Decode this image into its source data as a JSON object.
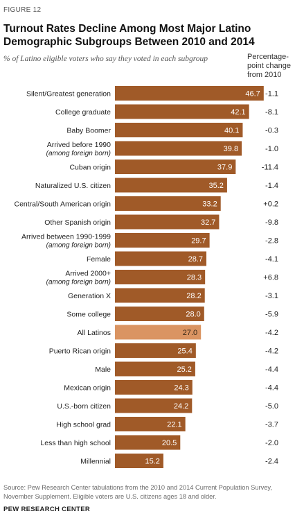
{
  "figure_label": "FIGURE 12",
  "title": "Turnout Rates Decline Among Most Major Latino Demographic Subgroups Between 2010 and 2014",
  "subtitle": "% of Latino eligible voters who say they voted in each subgroup",
  "change_header": "Percentage-point change from 2010",
  "source": "Source: Pew Research Center tabulations from the 2010 and 2014 Current Population Survey, November Supplement. Eligible voters are U.S. citizens ages 18 and older.",
  "organization": "PEW RESEARCH CENTER",
  "colors": {
    "bar": "#a05a28",
    "highlight": "#da9462",
    "value_text": "#ffffff",
    "highlight_text": "#3a2a1a"
  },
  "chart_data": {
    "type": "bar",
    "orientation": "horizontal",
    "xlim": [
      0,
      50
    ],
    "grid": false,
    "highlight": "All Latinos",
    "categories": [
      {
        "label": "Silent/Greatest generation"
      },
      {
        "label": "College graduate"
      },
      {
        "label": "Baby Boomer"
      },
      {
        "label": "Arrived before 1990",
        "note": "(among foreign born)"
      },
      {
        "label": "Cuban origin"
      },
      {
        "label": "Naturalized U.S. citizen"
      },
      {
        "label": "Central/South American origin"
      },
      {
        "label": "Other Spanish origin"
      },
      {
        "label": "Arrived between 1990-1999",
        "note": "(among foreign born)"
      },
      {
        "label": "Female"
      },
      {
        "label": "Arrived 2000+",
        "note": "(among foreign born)"
      },
      {
        "label": "Generation X"
      },
      {
        "label": "Some college"
      },
      {
        "label": "All Latinos"
      },
      {
        "label": "Puerto Rican origin"
      },
      {
        "label": "Male"
      },
      {
        "label": "Mexican origin"
      },
      {
        "label": "U.S.-born citizen"
      },
      {
        "label": "High school grad"
      },
      {
        "label": "Less than high school"
      },
      {
        "label": "Millennial"
      }
    ],
    "values": [
      46.7,
      42.1,
      40.1,
      39.8,
      37.9,
      35.2,
      33.2,
      32.7,
      29.7,
      28.7,
      28.3,
      28.2,
      28.0,
      27.0,
      25.4,
      25.2,
      24.3,
      24.2,
      22.1,
      20.5,
      15.2
    ],
    "value_labels": [
      "46.7",
      "42.1",
      "40.1",
      "39.8",
      "37.9",
      "35.2",
      "33.2",
      "32.7",
      "29.7",
      "28.7",
      "28.3",
      "28.2",
      "28.0",
      "27.0",
      "25.4",
      "25.2",
      "24.3",
      "24.2",
      "22.1",
      "20.5",
      "15.2"
    ],
    "change_labels": [
      "-1.1",
      "-8.1",
      "-0.3",
      "-1.0",
      "-11.4",
      "-1.4",
      "+0.2",
      "-9.8",
      "-2.8",
      "-4.1",
      "+6.8",
      "-3.1",
      "-5.9",
      "-4.2",
      "-4.2",
      "-4.4",
      "-4.4",
      "-5.0",
      "-3.7",
      "-2.0",
      "-2.4"
    ]
  }
}
